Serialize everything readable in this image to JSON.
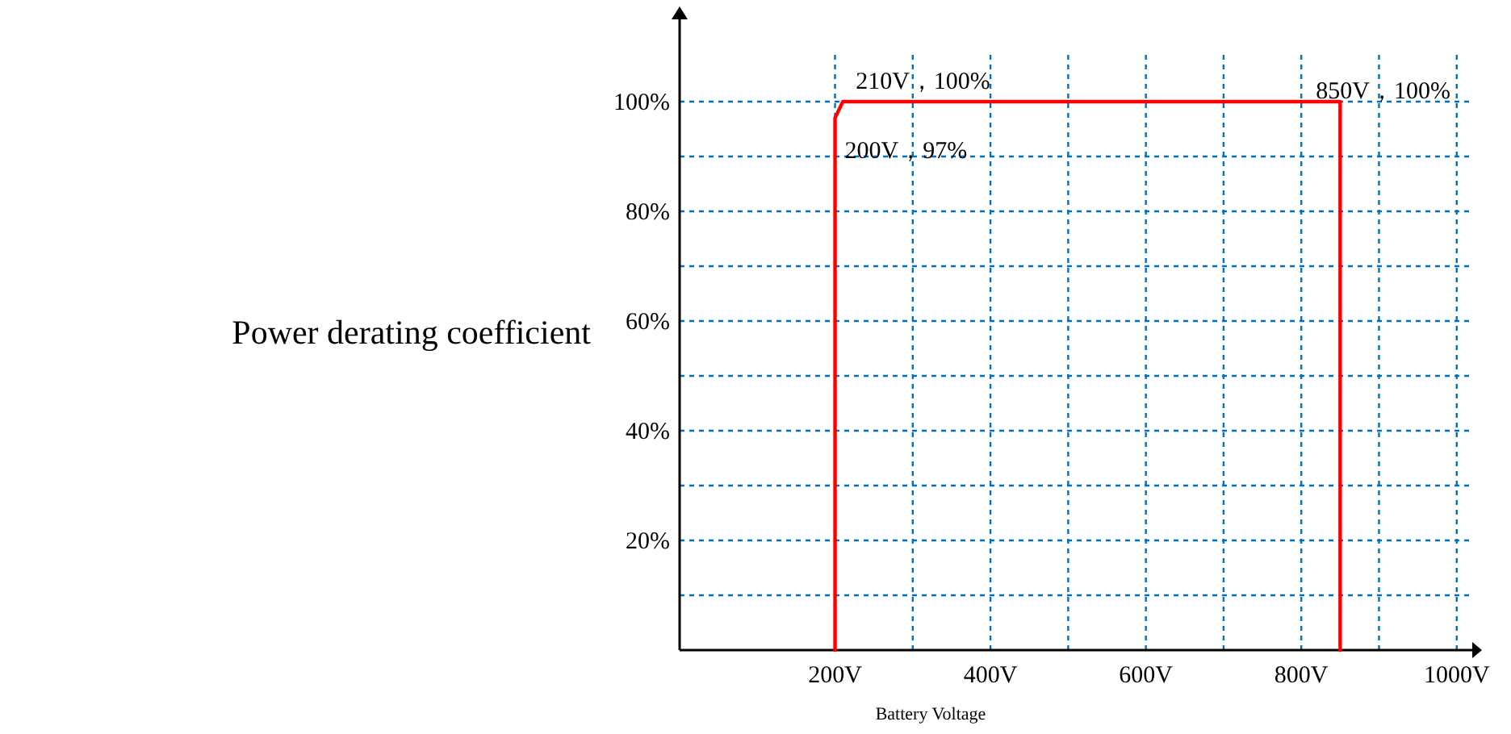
{
  "chart_data": {
    "type": "line",
    "xlabel": "Battery Voltage",
    "ylabel": "Power derating coefficient",
    "series": [
      {
        "color": "#ff0000",
        "x": [
          200,
          200,
          210,
          850,
          850
        ],
        "values": [
          0,
          97,
          100,
          100,
          0
        ]
      }
    ],
    "xlim": [
      0,
      1020
    ],
    "ylim": [
      0,
      115
    ],
    "xticks": [
      {
        "value": 200,
        "label": "200V"
      },
      {
        "value": 300,
        "label": null
      },
      {
        "value": 400,
        "label": "400V"
      },
      {
        "value": 500,
        "label": null
      },
      {
        "value": 600,
        "label": "600V"
      },
      {
        "value": 700,
        "label": null
      },
      {
        "value": 800,
        "label": "800V"
      },
      {
        "value": 900,
        "label": null
      },
      {
        "value": 1000,
        "label": "1000V"
      }
    ],
    "yticks": [
      {
        "value": 10,
        "label": null
      },
      {
        "value": 20,
        "label": "20%"
      },
      {
        "value": 30,
        "label": null
      },
      {
        "value": 40,
        "label": "40%"
      },
      {
        "value": 50,
        "label": null
      },
      {
        "value": 60,
        "label": "60%"
      },
      {
        "value": 70,
        "label": null
      },
      {
        "value": 80,
        "label": "80%"
      },
      {
        "value": 90,
        "label": null
      },
      {
        "value": 100,
        "label": "100%"
      }
    ],
    "grid": true,
    "line_style": "solid",
    "marker": "none",
    "annotations": [
      {
        "text": "210V，100%",
        "x": 210,
        "y": 100
      },
      {
        "text": "200V，97%",
        "x": 200,
        "y": 97
      },
      {
        "text": "850V，100%",
        "x": 850,
        "y": 100
      }
    ]
  }
}
